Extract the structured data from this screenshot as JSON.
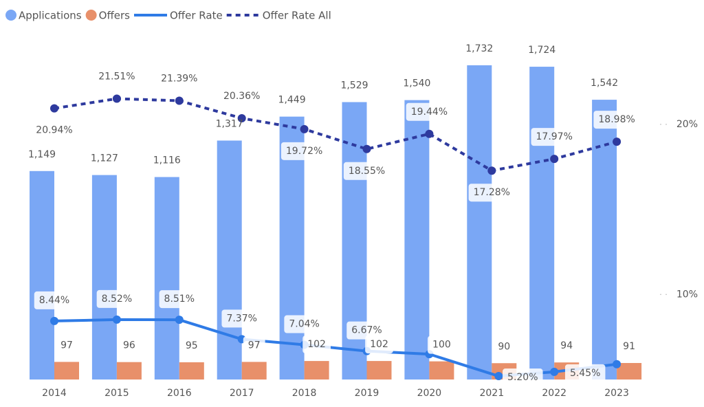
{
  "chart_data": {
    "type": "combo",
    "categories": [
      "2014",
      "2015",
      "2016",
      "2017",
      "2018",
      "2019",
      "2020",
      "2021",
      "2022",
      "2023"
    ],
    "ylim": [
      0,
      1800
    ],
    "y2lim": [
      5,
      24.2
    ],
    "y2ticks": [
      {
        "value": 10,
        "label": "10%"
      },
      {
        "value": 20,
        "label": "20%"
      }
    ],
    "legend": "top-left",
    "series": [
      {
        "name": "Applications",
        "type": "bar",
        "color": "#7aa7f5",
        "values": [
          1149,
          1127,
          1116,
          1317,
          1449,
          1529,
          1540,
          1732,
          1724,
          1542
        ],
        "value_labels": [
          "1,149",
          "1,127",
          "1,116",
          "1,317",
          "1,449",
          "1,529",
          "1,540",
          "1,732",
          "1,724",
          "1,542"
        ]
      },
      {
        "name": "Offers",
        "type": "bar",
        "color": "#e8906a",
        "values": [
          97,
          96,
          95,
          97,
          102,
          102,
          100,
          90,
          94,
          91
        ]
      },
      {
        "name": "Offer Rate",
        "type": "line",
        "axis": "y2",
        "color": "#2f7be6",
        "style": "solid",
        "values": [
          8.44,
          8.52,
          8.51,
          7.37,
          7.04,
          6.67,
          6.49,
          5.2,
          5.45,
          5.9
        ],
        "value_labels": [
          "8.44%",
          "8.52%",
          "8.51%",
          "7.37%",
          "7.04%",
          "6.67%",
          null,
          "5.20%",
          "5.45%",
          null
        ]
      },
      {
        "name": "Offer Rate All",
        "type": "line",
        "axis": "y2",
        "color": "#2e3a9e",
        "style": "dashed",
        "values": [
          20.94,
          21.51,
          21.39,
          20.36,
          19.72,
          18.55,
          19.44,
          17.28,
          17.97,
          18.98
        ],
        "value_labels": [
          "20.94%",
          "21.51%",
          "21.39%",
          "20.36%",
          "19.72%",
          "18.55%",
          "19.44%",
          "17.28%",
          "17.97%",
          "18.98%"
        ]
      }
    ]
  }
}
